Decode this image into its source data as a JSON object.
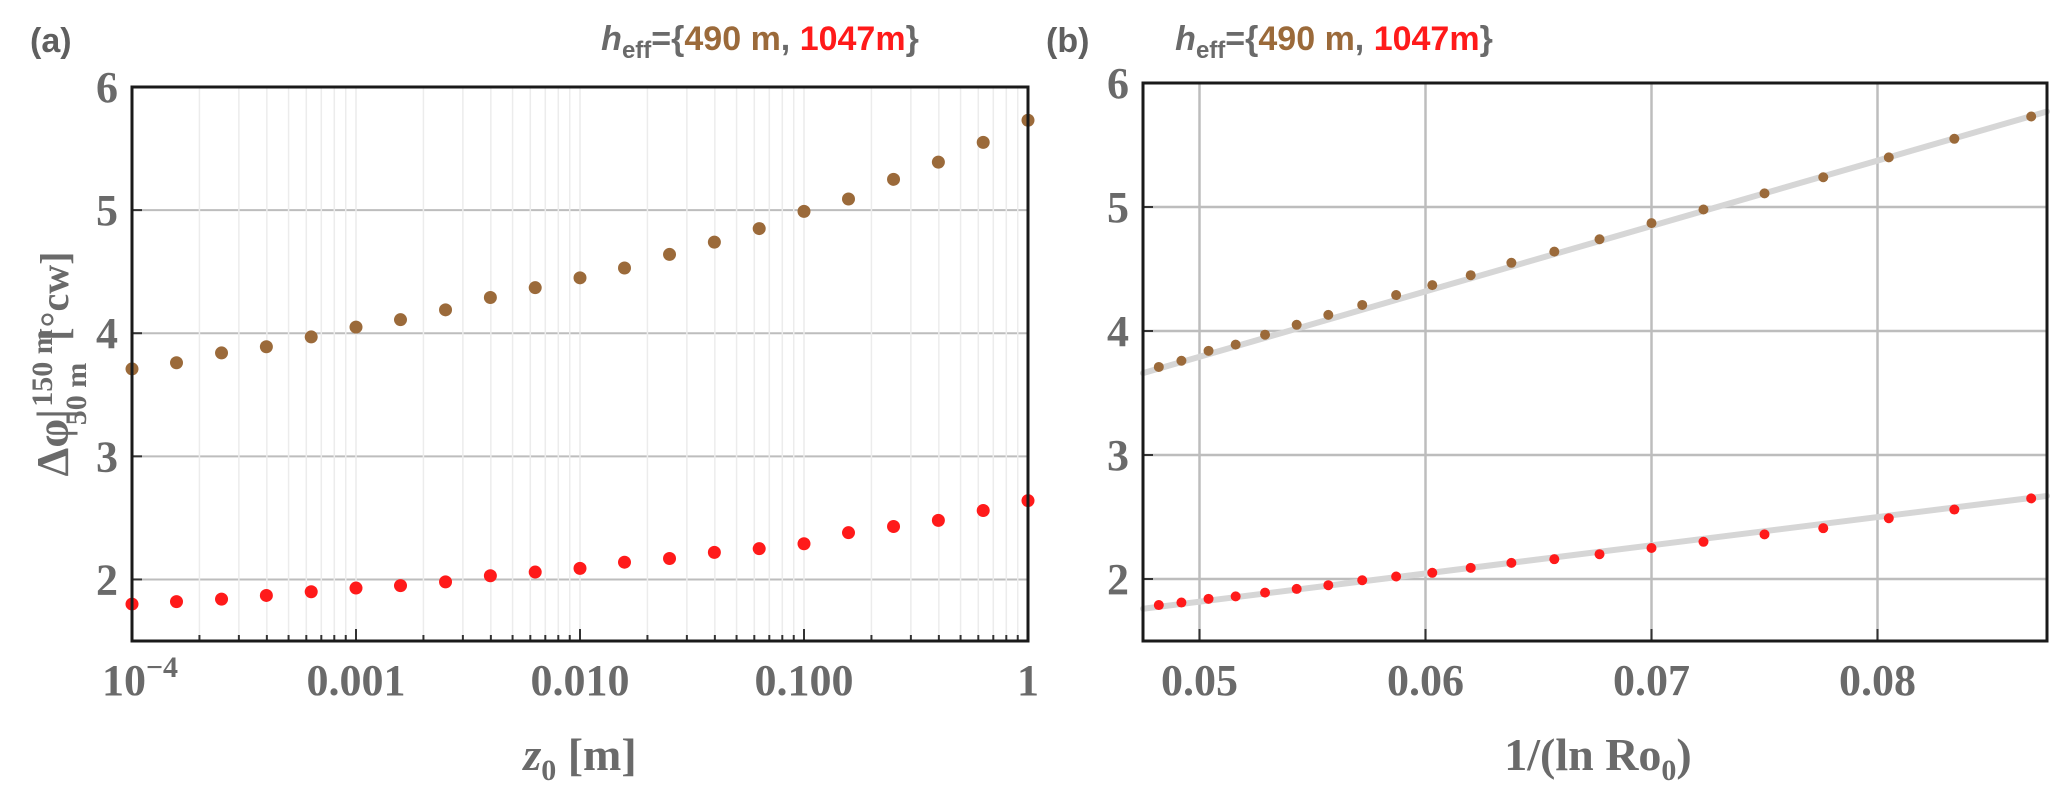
{
  "colors": {
    "brown": "#9b6a3a",
    "red": "#ff1a1a"
  },
  "panels": {
    "a": {
      "label": "(a)",
      "title": {
        "h": "h",
        "sub": "eff",
        "eq": "={",
        "v1": "490 m",
        "sep": ", ",
        "v2": "1047m",
        "close": "}"
      },
      "xlabel": {
        "z": "z",
        "sub": "0",
        "unit": " [m]"
      },
      "ylabel": {
        "delta": "Δφ|",
        "sup": "150 m",
        "sub": "50 m",
        "unit": "[°cw]"
      }
    },
    "b": {
      "label": "(b)",
      "title": {
        "h": "h",
        "sub": "eff",
        "eq": "={",
        "v1": "490 m",
        "sep": ", ",
        "v2": "1047m",
        "close": "}"
      },
      "xlabel": {
        "pre": "1/(ln Ro",
        "sub": "0",
        "post": ")"
      }
    }
  },
  "chart_data": [
    {
      "type": "scatter",
      "panel": "a",
      "title": "h_eff={490 m, 1047m}",
      "xlabel": "z0 [m]",
      "ylabel": "Δφ|50 m→150 m [°cw]",
      "xscale": "log",
      "xlim": [
        0.0001,
        1
      ],
      "ylim": [
        1.5,
        6
      ],
      "xticks": [
        {
          "value": 0.0001,
          "base": "10",
          "exp": "−4"
        },
        {
          "value": 0.001,
          "label": "0.001"
        },
        {
          "value": 0.01,
          "label": "0.010"
        },
        {
          "value": 0.1,
          "label": "0.100"
        },
        {
          "value": 1,
          "label": "1"
        }
      ],
      "yticks": [
        2,
        3,
        4,
        5,
        6
      ],
      "grid": true,
      "series": [
        {
          "name": "490 m",
          "color": "#9b6a3a",
          "x": [
            0.0001,
            0.000158,
            0.000251,
            0.000398,
            0.000631,
            0.001,
            0.00158,
            0.00251,
            0.00398,
            0.00631,
            0.01,
            0.0158,
            0.0251,
            0.0398,
            0.0631,
            0.1,
            0.158,
            0.251,
            0.398,
            0.631,
            1
          ],
          "y": [
            3.71,
            3.76,
            3.84,
            3.89,
            3.97,
            4.05,
            4.11,
            4.19,
            4.29,
            4.37,
            4.45,
            4.53,
            4.64,
            4.74,
            4.85,
            4.99,
            5.09,
            5.25,
            5.39,
            5.55,
            5.73
          ]
        },
        {
          "name": "1047m",
          "color": "#ff1a1a",
          "x": [
            0.0001,
            0.000158,
            0.000251,
            0.000398,
            0.000631,
            0.001,
            0.00158,
            0.00251,
            0.00398,
            0.00631,
            0.01,
            0.0158,
            0.0251,
            0.0398,
            0.0631,
            0.1,
            0.158,
            0.251,
            0.398,
            0.631,
            1
          ],
          "y": [
            1.8,
            1.82,
            1.84,
            1.87,
            1.9,
            1.93,
            1.95,
            1.98,
            2.03,
            2.06,
            2.09,
            2.14,
            2.17,
            2.22,
            2.25,
            2.29,
            2.38,
            2.43,
            2.48,
            2.56,
            2.64
          ]
        }
      ]
    },
    {
      "type": "scatter",
      "panel": "b",
      "title": "h_eff={490 m, 1047m}",
      "xlabel": "1/(ln Ro0)",
      "xscale": "linear",
      "xlim": [
        0.0475,
        0.0875
      ],
      "ylim": [
        1.5,
        6
      ],
      "xticks": [
        0.05,
        0.06,
        0.07,
        0.08
      ],
      "xticklabels": [
        "0.05",
        "0.06",
        "0.07",
        "0.08"
      ],
      "yticks": [
        2,
        3,
        4,
        5,
        6
      ],
      "grid": true,
      "fits": [
        {
          "series": "490 m",
          "type": "linear",
          "x0": 0.0475,
          "y0": 3.66,
          "x1": 0.0875,
          "y1": 5.77
        },
        {
          "series": "1047m",
          "type": "linear",
          "x0": 0.0475,
          "y0": 1.76,
          "x1": 0.0875,
          "y1": 2.67
        }
      ],
      "series": [
        {
          "name": "490 m",
          "color": "#9b6a3a",
          "x": [
            0.0482,
            0.0492,
            0.0504,
            0.0516,
            0.0529,
            0.0543,
            0.0557,
            0.0572,
            0.0587,
            0.0603,
            0.062,
            0.0638,
            0.0657,
            0.0677,
            0.07,
            0.0723,
            0.075,
            0.0776,
            0.0805,
            0.0834,
            0.0868
          ],
          "y": [
            3.71,
            3.76,
            3.84,
            3.89,
            3.97,
            4.05,
            4.13,
            4.21,
            4.29,
            4.37,
            4.45,
            4.55,
            4.64,
            4.74,
            4.87,
            4.98,
            5.11,
            5.24,
            5.4,
            5.55,
            5.73
          ]
        },
        {
          "name": "1047m",
          "color": "#ff1a1a",
          "x": [
            0.0482,
            0.0492,
            0.0504,
            0.0516,
            0.0529,
            0.0543,
            0.0557,
            0.0572,
            0.0587,
            0.0603,
            0.062,
            0.0638,
            0.0657,
            0.0677,
            0.07,
            0.0723,
            0.075,
            0.0776,
            0.0805,
            0.0834,
            0.0868
          ],
          "y": [
            1.79,
            1.81,
            1.84,
            1.86,
            1.89,
            1.92,
            1.95,
            1.99,
            2.02,
            2.05,
            2.09,
            2.13,
            2.16,
            2.2,
            2.25,
            2.3,
            2.36,
            2.41,
            2.49,
            2.56,
            2.65
          ]
        }
      ]
    }
  ]
}
